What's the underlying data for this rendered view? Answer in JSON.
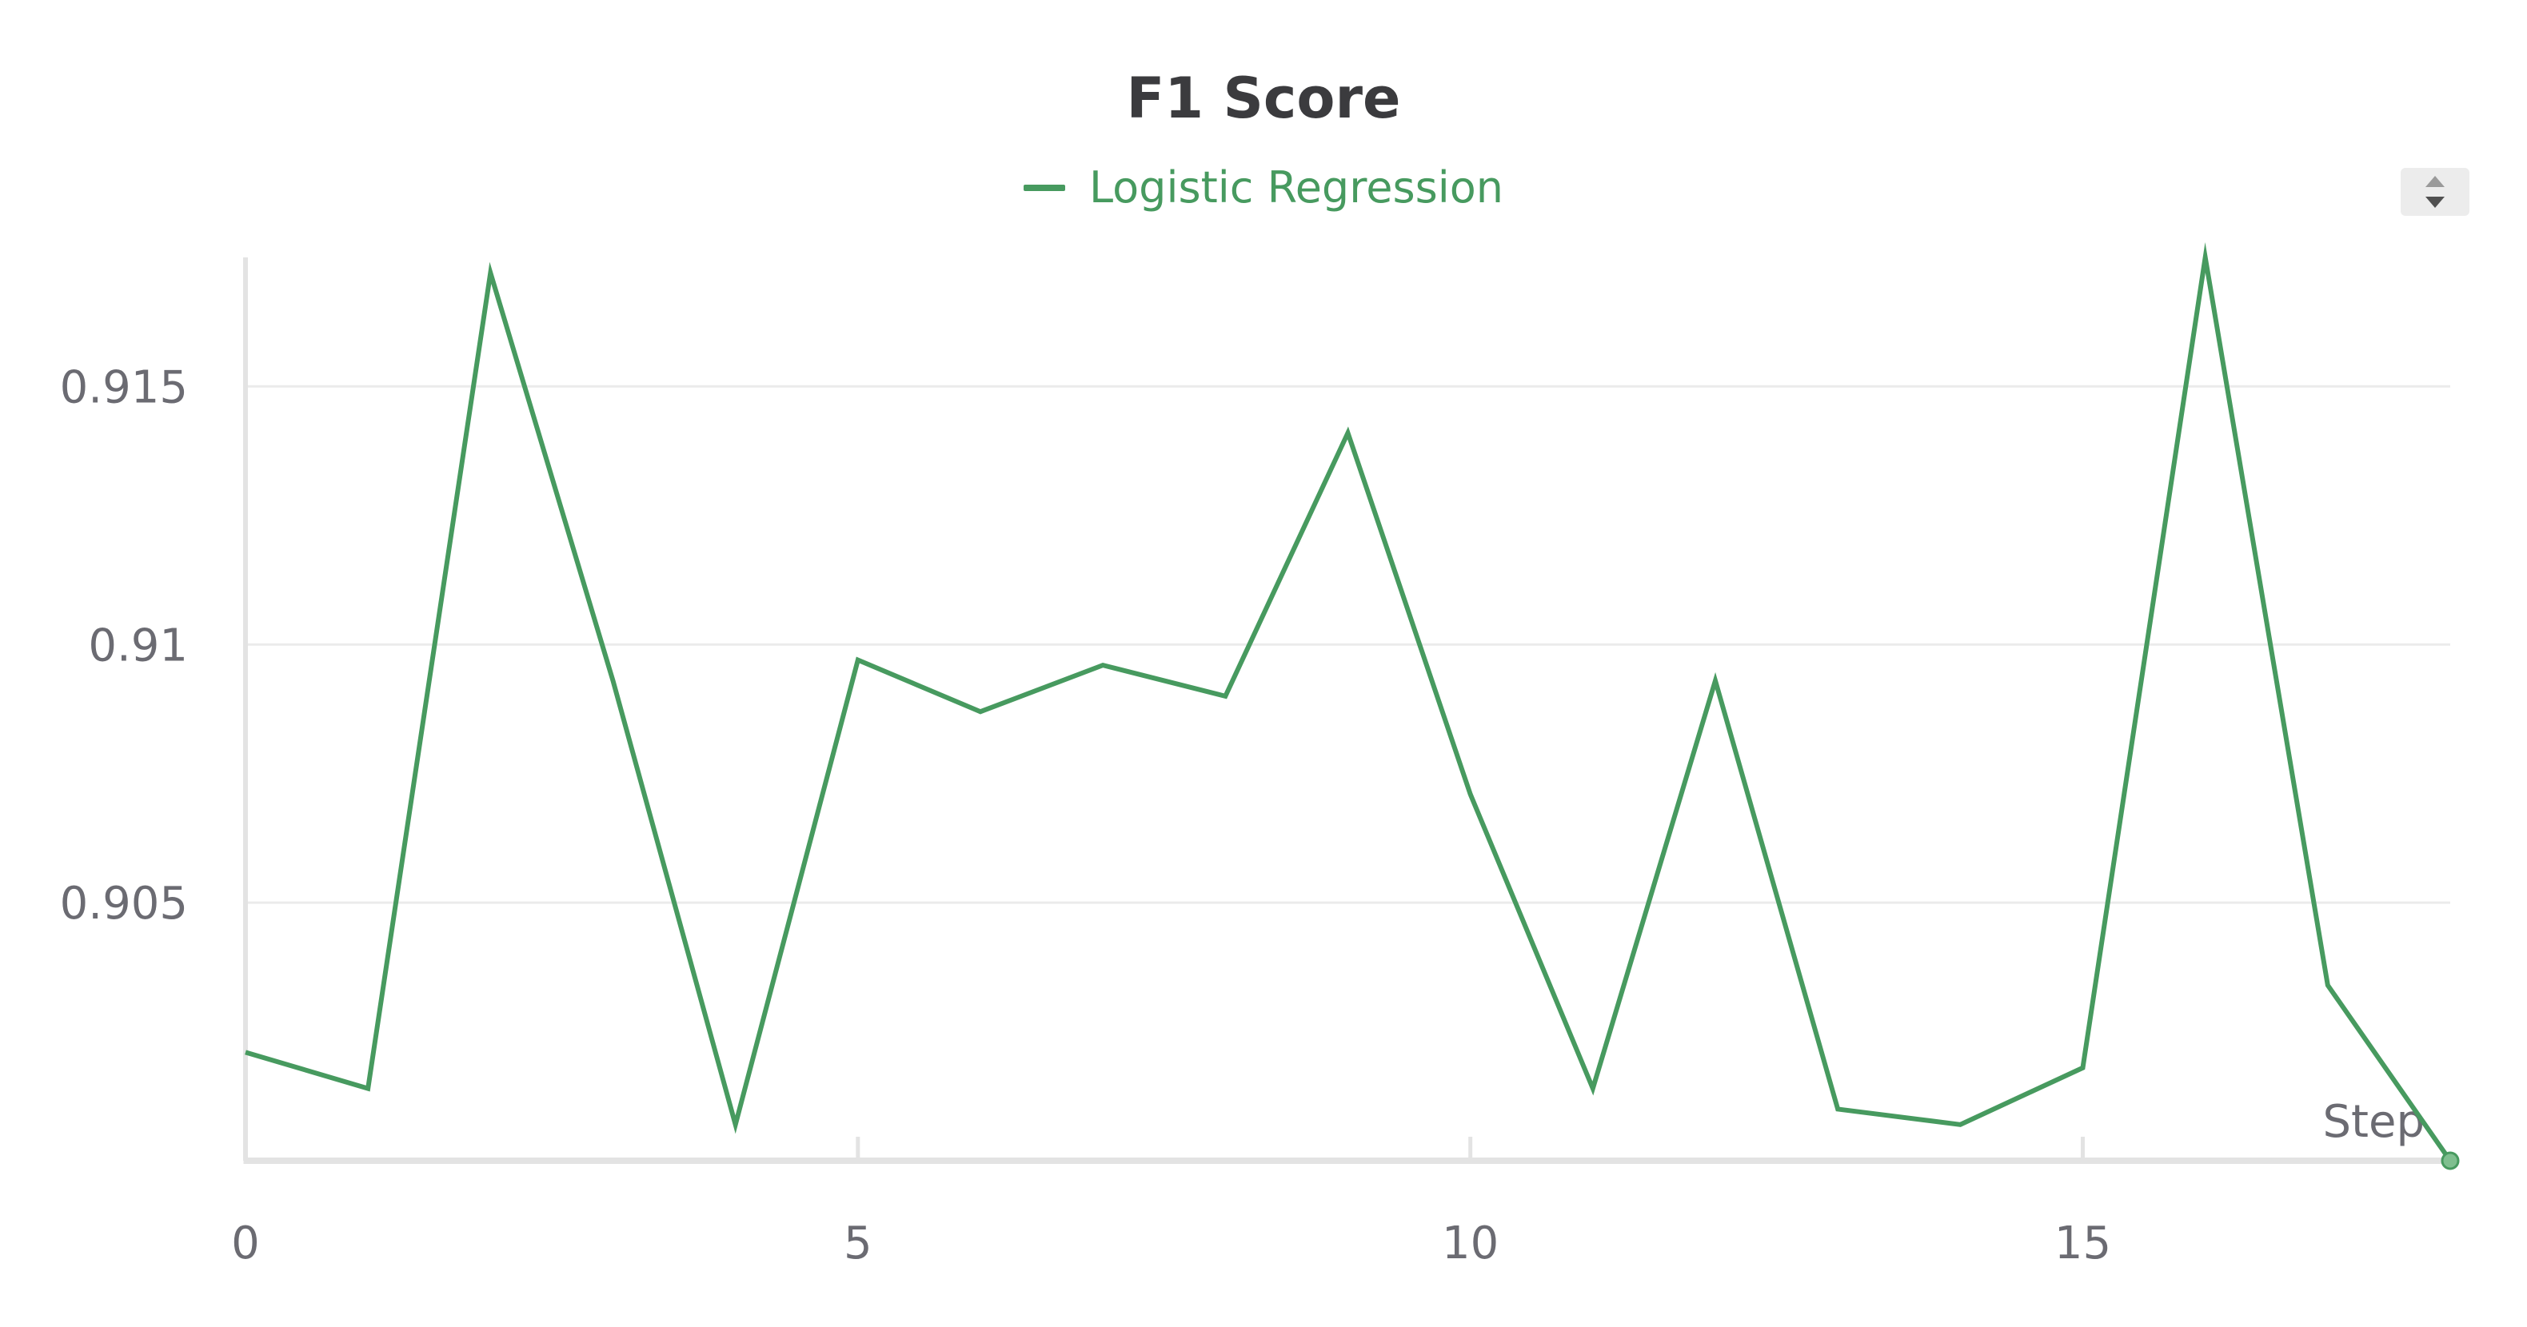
{
  "chart_data": {
    "type": "line",
    "title": "F1 Score",
    "xlabel": "Step",
    "ylabel": "",
    "x": [
      0,
      1,
      2,
      3,
      4,
      5,
      6,
      7,
      8,
      9,
      10,
      11,
      12,
      13,
      14,
      15,
      16,
      17,
      18
    ],
    "series": [
      {
        "name": "Logistic Regression",
        "color": "#479a5f",
        "values": [
          0.9021,
          0.9014,
          0.9172,
          0.9093,
          0.9007,
          0.9097,
          0.9087,
          0.9096,
          0.909,
          0.9141,
          0.9071,
          0.9014,
          0.9093,
          0.901,
          0.9007,
          0.9018,
          0.9175,
          0.9034,
          0.9
        ]
      }
    ],
    "xlim": [
      0,
      18
    ],
    "ylim": [
      0.9,
      0.9175
    ],
    "x_ticks": [
      0,
      5,
      10,
      15
    ],
    "x_tick_labels": [
      "0",
      "5",
      "10",
      "15"
    ],
    "y_ticks": [
      0.905,
      0.91,
      0.915
    ],
    "y_tick_labels": [
      "0.905",
      "0.91",
      "0.915"
    ],
    "grid": true,
    "legend_position": "top-center"
  },
  "colors": {
    "axis": "#e3e3e3",
    "grid": "#ebebeb",
    "text": "#6b6b72",
    "title": "#3b3b3e"
  }
}
